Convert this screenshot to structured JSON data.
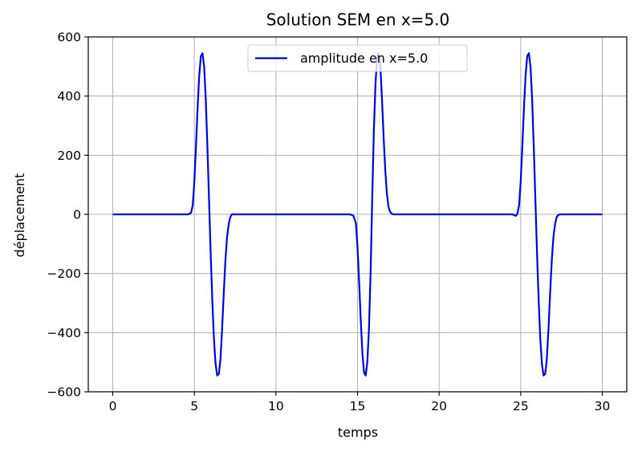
{
  "chart_data": {
    "type": "line",
    "title": "Solution SEM en x=5.0",
    "xlabel": "temps",
    "ylabel": "déplacement",
    "xlim": [
      -1.5,
      31.5
    ],
    "ylim": [
      -600,
      600
    ],
    "xticks": [
      0,
      5,
      10,
      15,
      20,
      25,
      30
    ],
    "yticks": [
      -600,
      -400,
      -200,
      0,
      200,
      400,
      600
    ],
    "xtick_labels": [
      "0",
      "5",
      "10",
      "15",
      "20",
      "25",
      "30"
    ],
    "ytick_labels": [
      "−600",
      "−400",
      "−200",
      "0",
      "200",
      "400",
      "600"
    ],
    "grid": true,
    "legend_position": "top-center",
    "series": [
      {
        "name": "amplitude en x=5.0",
        "color": "#0000dd",
        "x": [
          0,
          4.6,
          4.8,
          4.9,
          5.0,
          5.1,
          5.2,
          5.3,
          5.4,
          5.5,
          5.6,
          5.7,
          5.8,
          5.9,
          6.0,
          6.1,
          6.2,
          6.3,
          6.4,
          6.5,
          6.6,
          6.7,
          6.8,
          6.9,
          7.0,
          7.1,
          7.2,
          7.3,
          7.45,
          14.5,
          14.65,
          14.75,
          14.9,
          15.0,
          15.1,
          15.2,
          15.3,
          15.4,
          15.5,
          15.6,
          15.7,
          15.8,
          15.9,
          16.0,
          16.1,
          16.2,
          16.3,
          16.4,
          16.5,
          16.6,
          16.7,
          16.8,
          16.9,
          17.0,
          17.1,
          17.2,
          17.35,
          24.5,
          24.7,
          24.8,
          24.9,
          25.0,
          25.1,
          25.2,
          25.3,
          25.4,
          25.5,
          25.6,
          25.7,
          25.8,
          25.9,
          26.0,
          26.1,
          26.2,
          26.3,
          26.4,
          26.5,
          26.6,
          26.7,
          26.8,
          26.9,
          27.0,
          27.1,
          27.2,
          27.3,
          27.45,
          30
        ],
        "y": [
          0,
          0,
          5,
          30,
          110,
          230,
          360,
          470,
          535,
          545,
          500,
          390,
          230,
          50,
          -130,
          -290,
          -420,
          -505,
          -545,
          -540,
          -490,
          -390,
          -270,
          -160,
          -80,
          -35,
          -10,
          0,
          0,
          0,
          -2,
          -5,
          -30,
          -110,
          -230,
          -360,
          -470,
          -535,
          -545,
          -500,
          -390,
          -200,
          50,
          280,
          440,
          530,
          545,
          500,
          390,
          260,
          150,
          70,
          25,
          8,
          2,
          0,
          0,
          0,
          -5,
          2,
          30,
          110,
          230,
          360,
          470,
          535,
          545,
          500,
          390,
          230,
          50,
          -130,
          -290,
          -420,
          -505,
          -545,
          -540,
          -490,
          -390,
          -270,
          -160,
          -80,
          -35,
          -10,
          -2,
          0,
          0
        ]
      }
    ]
  }
}
